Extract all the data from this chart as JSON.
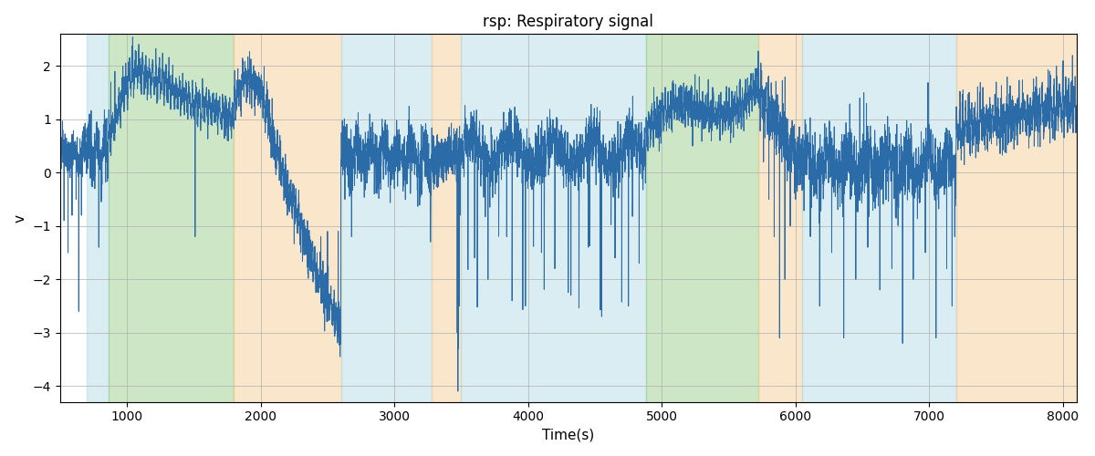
{
  "title": "rsp: Respiratory signal",
  "xlabel": "Time(s)",
  "ylabel": "v",
  "xlim": [
    500,
    8100
  ],
  "ylim": [
    -4.3,
    2.6
  ],
  "line_color": "#2b6ca8",
  "line_width": 0.7,
  "background_color": "#ffffff",
  "grid_color": "#b0b0b0",
  "title_fontsize": 12,
  "label_fontsize": 11,
  "tick_fontsize": 10,
  "bands": [
    {
      "xmin": 700,
      "xmax": 860,
      "color": "#add8e6",
      "alpha": 0.45
    },
    {
      "xmin": 860,
      "xmax": 1800,
      "color": "#90c880",
      "alpha": 0.45
    },
    {
      "xmin": 1800,
      "xmax": 2600,
      "color": "#f5c88a",
      "alpha": 0.45
    },
    {
      "xmin": 2600,
      "xmax": 3280,
      "color": "#add8e6",
      "alpha": 0.45
    },
    {
      "xmin": 3280,
      "xmax": 3500,
      "color": "#f5c88a",
      "alpha": 0.45
    },
    {
      "xmin": 3500,
      "xmax": 4880,
      "color": "#add8e6",
      "alpha": 0.45
    },
    {
      "xmin": 4880,
      "xmax": 5720,
      "color": "#90c880",
      "alpha": 0.45
    },
    {
      "xmin": 5720,
      "xmax": 6050,
      "color": "#f5c88a",
      "alpha": 0.45
    },
    {
      "xmin": 6050,
      "xmax": 7200,
      "color": "#add8e6",
      "alpha": 0.45
    },
    {
      "xmin": 7200,
      "xmax": 8100,
      "color": "#f5c88a",
      "alpha": 0.45
    }
  ],
  "xticks": [
    1000,
    2000,
    3000,
    4000,
    5000,
    6000,
    7000,
    8000
  ],
  "yticks": [
    -4,
    -3,
    -2,
    -1,
    0,
    1,
    2
  ]
}
